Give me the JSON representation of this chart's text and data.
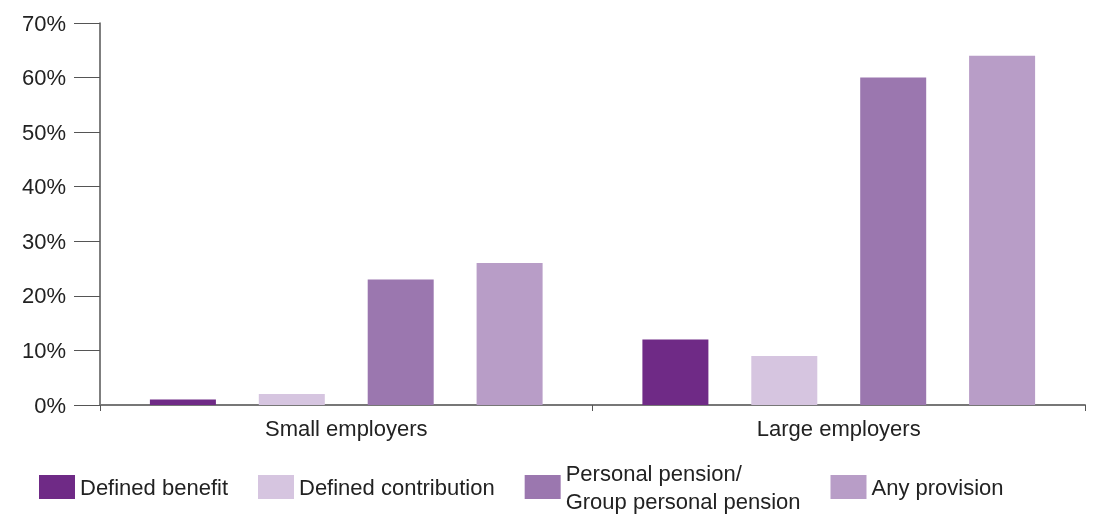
{
  "chart_data": {
    "type": "bar",
    "categories": [
      "Small employers",
      "Large employers"
    ],
    "series": [
      {
        "name": "Defined benefit",
        "color": "#6f2a86",
        "values": [
          1,
          12
        ]
      },
      {
        "name": "Defined contribution",
        "color": "#d6c5e0",
        "values": [
          2,
          9
        ]
      },
      {
        "name": "Personal pension/\nGroup personal pension",
        "color": "#9b77af",
        "values": [
          23,
          60
        ]
      },
      {
        "name": "Any provision",
        "color": "#b89dc7",
        "values": [
          26,
          64
        ]
      }
    ],
    "ylim": [
      0,
      70
    ],
    "yticks": [
      {
        "value": 0,
        "label": "0%"
      },
      {
        "value": 10,
        "label": "10%"
      },
      {
        "value": 20,
        "label": "20%"
      },
      {
        "value": 30,
        "label": "30%"
      },
      {
        "value": 40,
        "label": "40%"
      },
      {
        "value": 50,
        "label": "50%"
      },
      {
        "value": 60,
        "label": "60%"
      },
      {
        "value": 70,
        "label": "70%"
      }
    ],
    "grid": false,
    "legend": "bottom"
  }
}
